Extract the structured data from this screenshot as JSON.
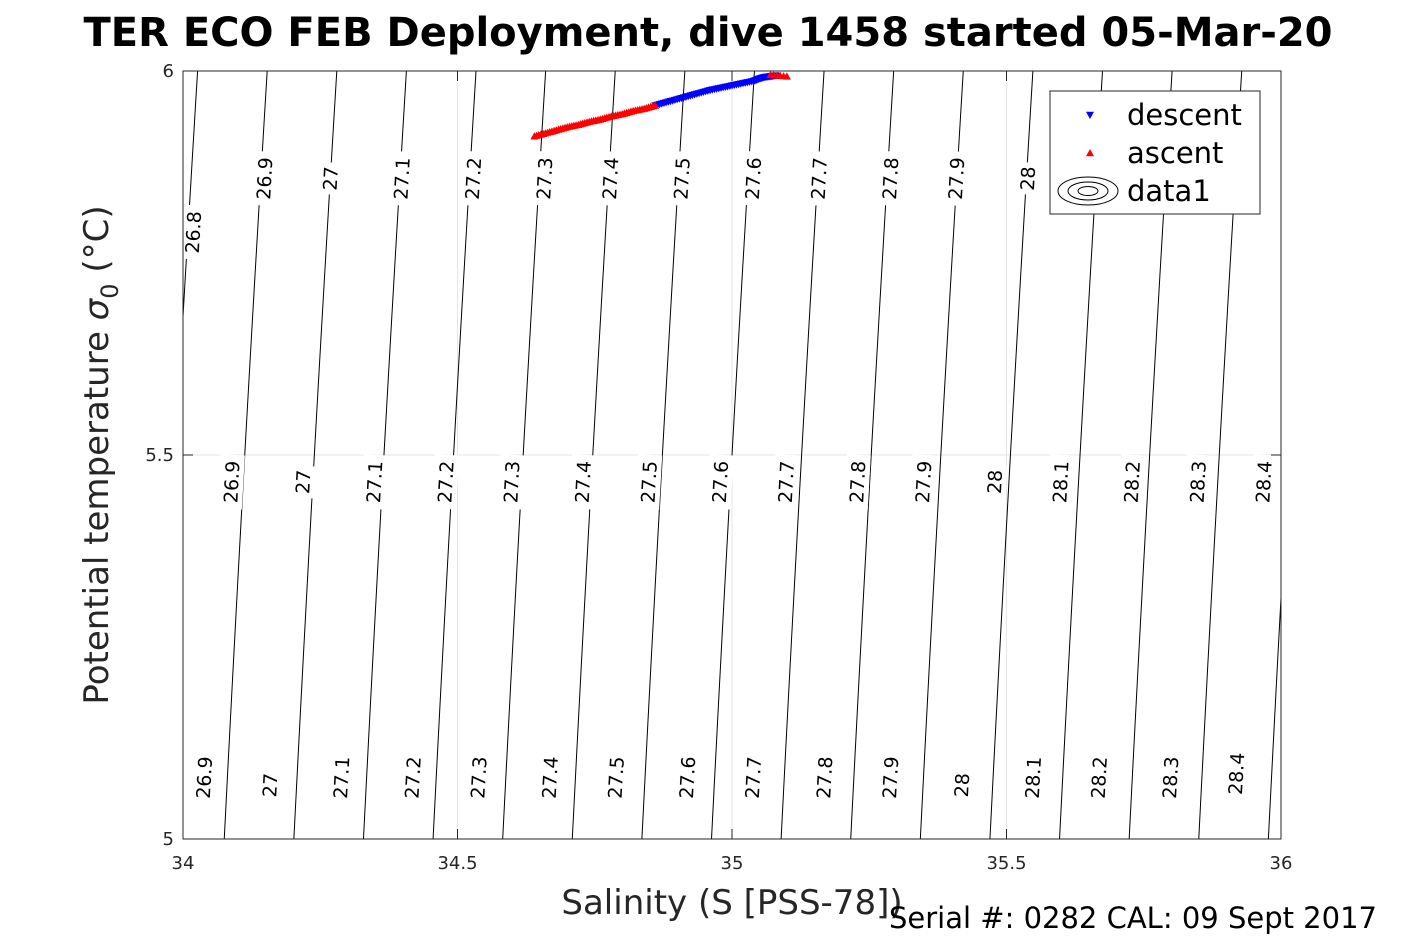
{
  "chart_data": {
    "type": "scatter",
    "title": "TER ECO FEB Deployment, dive 1458 started 05-Mar-20",
    "xlabel": "Salinity (S [PSS-78])",
    "ylabel_main": "Potential temperature ",
    "ylabel_symbol": "σ",
    "ylabel_sub": "0",
    "ylabel_unit": " (°C)",
    "xlim": [
      34,
      36
    ],
    "ylim": [
      5,
      6
    ],
    "xticks": [
      {
        "v": 34,
        "label": "34"
      },
      {
        "v": 34.5,
        "label": "34.5"
      },
      {
        "v": 35,
        "label": "35"
      },
      {
        "v": 35.5,
        "label": "35.5"
      },
      {
        "v": 36,
        "label": "36"
      }
    ],
    "yticks": [
      {
        "v": 5,
        "label": "5"
      },
      {
        "v": 5.5,
        "label": "5.5"
      },
      {
        "v": 6,
        "label": "6"
      }
    ],
    "grid": true,
    "legend_position": "top-right",
    "legend": [
      {
        "name": "descent",
        "marker": "triangle-down",
        "color": "#0000ff"
      },
      {
        "name": "ascent",
        "marker": "triangle-up",
        "color": "#ff0000"
      },
      {
        "name": "data1",
        "marker": "contour",
        "color": "#000000"
      }
    ],
    "series": [
      {
        "name": "descent",
        "color": "#0000ff",
        "marker": "triangle-down",
        "x": [
          34.86,
          34.88,
          34.9,
          34.92,
          34.94,
          34.96,
          34.98,
          35.0,
          35.02,
          35.04,
          35.05,
          35.06,
          35.07,
          35.08
        ],
        "y": [
          5.955,
          5.959,
          5.963,
          5.967,
          5.971,
          5.975,
          5.978,
          5.981,
          5.984,
          5.987,
          5.99,
          5.992,
          5.993,
          5.994
        ]
      },
      {
        "name": "ascent",
        "color": "#ff0000",
        "marker": "triangle-up",
        "x": [
          34.64,
          34.66,
          34.68,
          34.7,
          34.72,
          34.74,
          34.76,
          34.78,
          34.8,
          34.82,
          34.84,
          34.86,
          35.07,
          35.1
        ],
        "y": [
          5.915,
          5.919,
          5.923,
          5.927,
          5.93,
          5.934,
          5.937,
          5.941,
          5.944,
          5.948,
          5.951,
          5.955,
          5.995,
          5.993
        ]
      }
    ],
    "contour_series_name": "data1",
    "contour_levels": [
      26.8,
      26.9,
      27,
      27.1,
      27.2,
      27.3,
      27.4,
      27.5,
      27.6,
      27.7,
      27.8,
      27.9,
      28,
      28.1,
      28.2,
      28.3,
      28.4
    ],
    "contour_labels": [
      {
        "text": "26.8",
        "s": 34.02,
        "t": 5.79
      },
      {
        "text": "26.9",
        "s": 34.15,
        "t": 5.86
      },
      {
        "text": "27",
        "s": 34.27,
        "t": 5.86
      },
      {
        "text": "27.1",
        "s": 34.4,
        "t": 5.86
      },
      {
        "text": "27.2",
        "s": 34.53,
        "t": 5.86
      },
      {
        "text": "27.3",
        "s": 34.66,
        "t": 5.86
      },
      {
        "text": "27.4",
        "s": 34.78,
        "t": 5.86
      },
      {
        "text": "27.5",
        "s": 34.91,
        "t": 5.86
      },
      {
        "text": "27.6",
        "s": 35.04,
        "t": 5.86
      },
      {
        "text": "27.7",
        "s": 35.16,
        "t": 5.86
      },
      {
        "text": "27.8",
        "s": 35.29,
        "t": 5.86
      },
      {
        "text": "27.9",
        "s": 35.41,
        "t": 5.86
      },
      {
        "text": "28",
        "s": 35.54,
        "t": 5.86
      },
      {
        "text": "26.9",
        "s": 34.09,
        "t": 5.465
      },
      {
        "text": "27",
        "s": 34.22,
        "t": 5.465
      },
      {
        "text": "27.1",
        "s": 34.35,
        "t": 5.465
      },
      {
        "text": "27.2",
        "s": 34.48,
        "t": 5.465
      },
      {
        "text": "27.3",
        "s": 34.6,
        "t": 5.465
      },
      {
        "text": "27.4",
        "s": 34.73,
        "t": 5.465
      },
      {
        "text": "27.5",
        "s": 34.85,
        "t": 5.465
      },
      {
        "text": "27.6",
        "s": 34.98,
        "t": 5.465
      },
      {
        "text": "27.7",
        "s": 35.1,
        "t": 5.465
      },
      {
        "text": "27.8",
        "s": 35.23,
        "t": 5.465
      },
      {
        "text": "27.9",
        "s": 35.35,
        "t": 5.465
      },
      {
        "text": "28",
        "s": 35.48,
        "t": 5.465
      },
      {
        "text": "28.1",
        "s": 35.6,
        "t": 5.465
      },
      {
        "text": "28.2",
        "s": 35.73,
        "t": 5.465
      },
      {
        "text": "28.3",
        "s": 35.85,
        "t": 5.465
      },
      {
        "text": "28.4",
        "s": 35.97,
        "t": 5.465
      },
      {
        "text": "26.9",
        "s": 34.04,
        "t": 5.08
      },
      {
        "text": "27",
        "s": 34.16,
        "t": 5.07
      },
      {
        "text": "27.1",
        "s": 34.29,
        "t": 5.08
      },
      {
        "text": "27.2",
        "s": 34.42,
        "t": 5.08
      },
      {
        "text": "27.3",
        "s": 34.54,
        "t": 5.08
      },
      {
        "text": "27.4",
        "s": 34.67,
        "t": 5.08
      },
      {
        "text": "27.5",
        "s": 34.79,
        "t": 5.08
      },
      {
        "text": "27.6",
        "s": 34.92,
        "t": 5.08
      },
      {
        "text": "27.7",
        "s": 35.04,
        "t": 5.08
      },
      {
        "text": "27.8",
        "s": 35.17,
        "t": 5.08
      },
      {
        "text": "27.9",
        "s": 35.29,
        "t": 5.08
      },
      {
        "text": "28",
        "s": 35.42,
        "t": 5.07
      },
      {
        "text": "28.1",
        "s": 35.55,
        "t": 5.08
      },
      {
        "text": "28.2",
        "s": 35.67,
        "t": 5.08
      },
      {
        "text": "28.3",
        "s": 35.8,
        "t": 5.08
      },
      {
        "text": "28.4",
        "s": 35.92,
        "t": 5.085
      }
    ]
  },
  "footer": {
    "text": "Serial #: 0282  CAL: 09 Sept 2017"
  }
}
